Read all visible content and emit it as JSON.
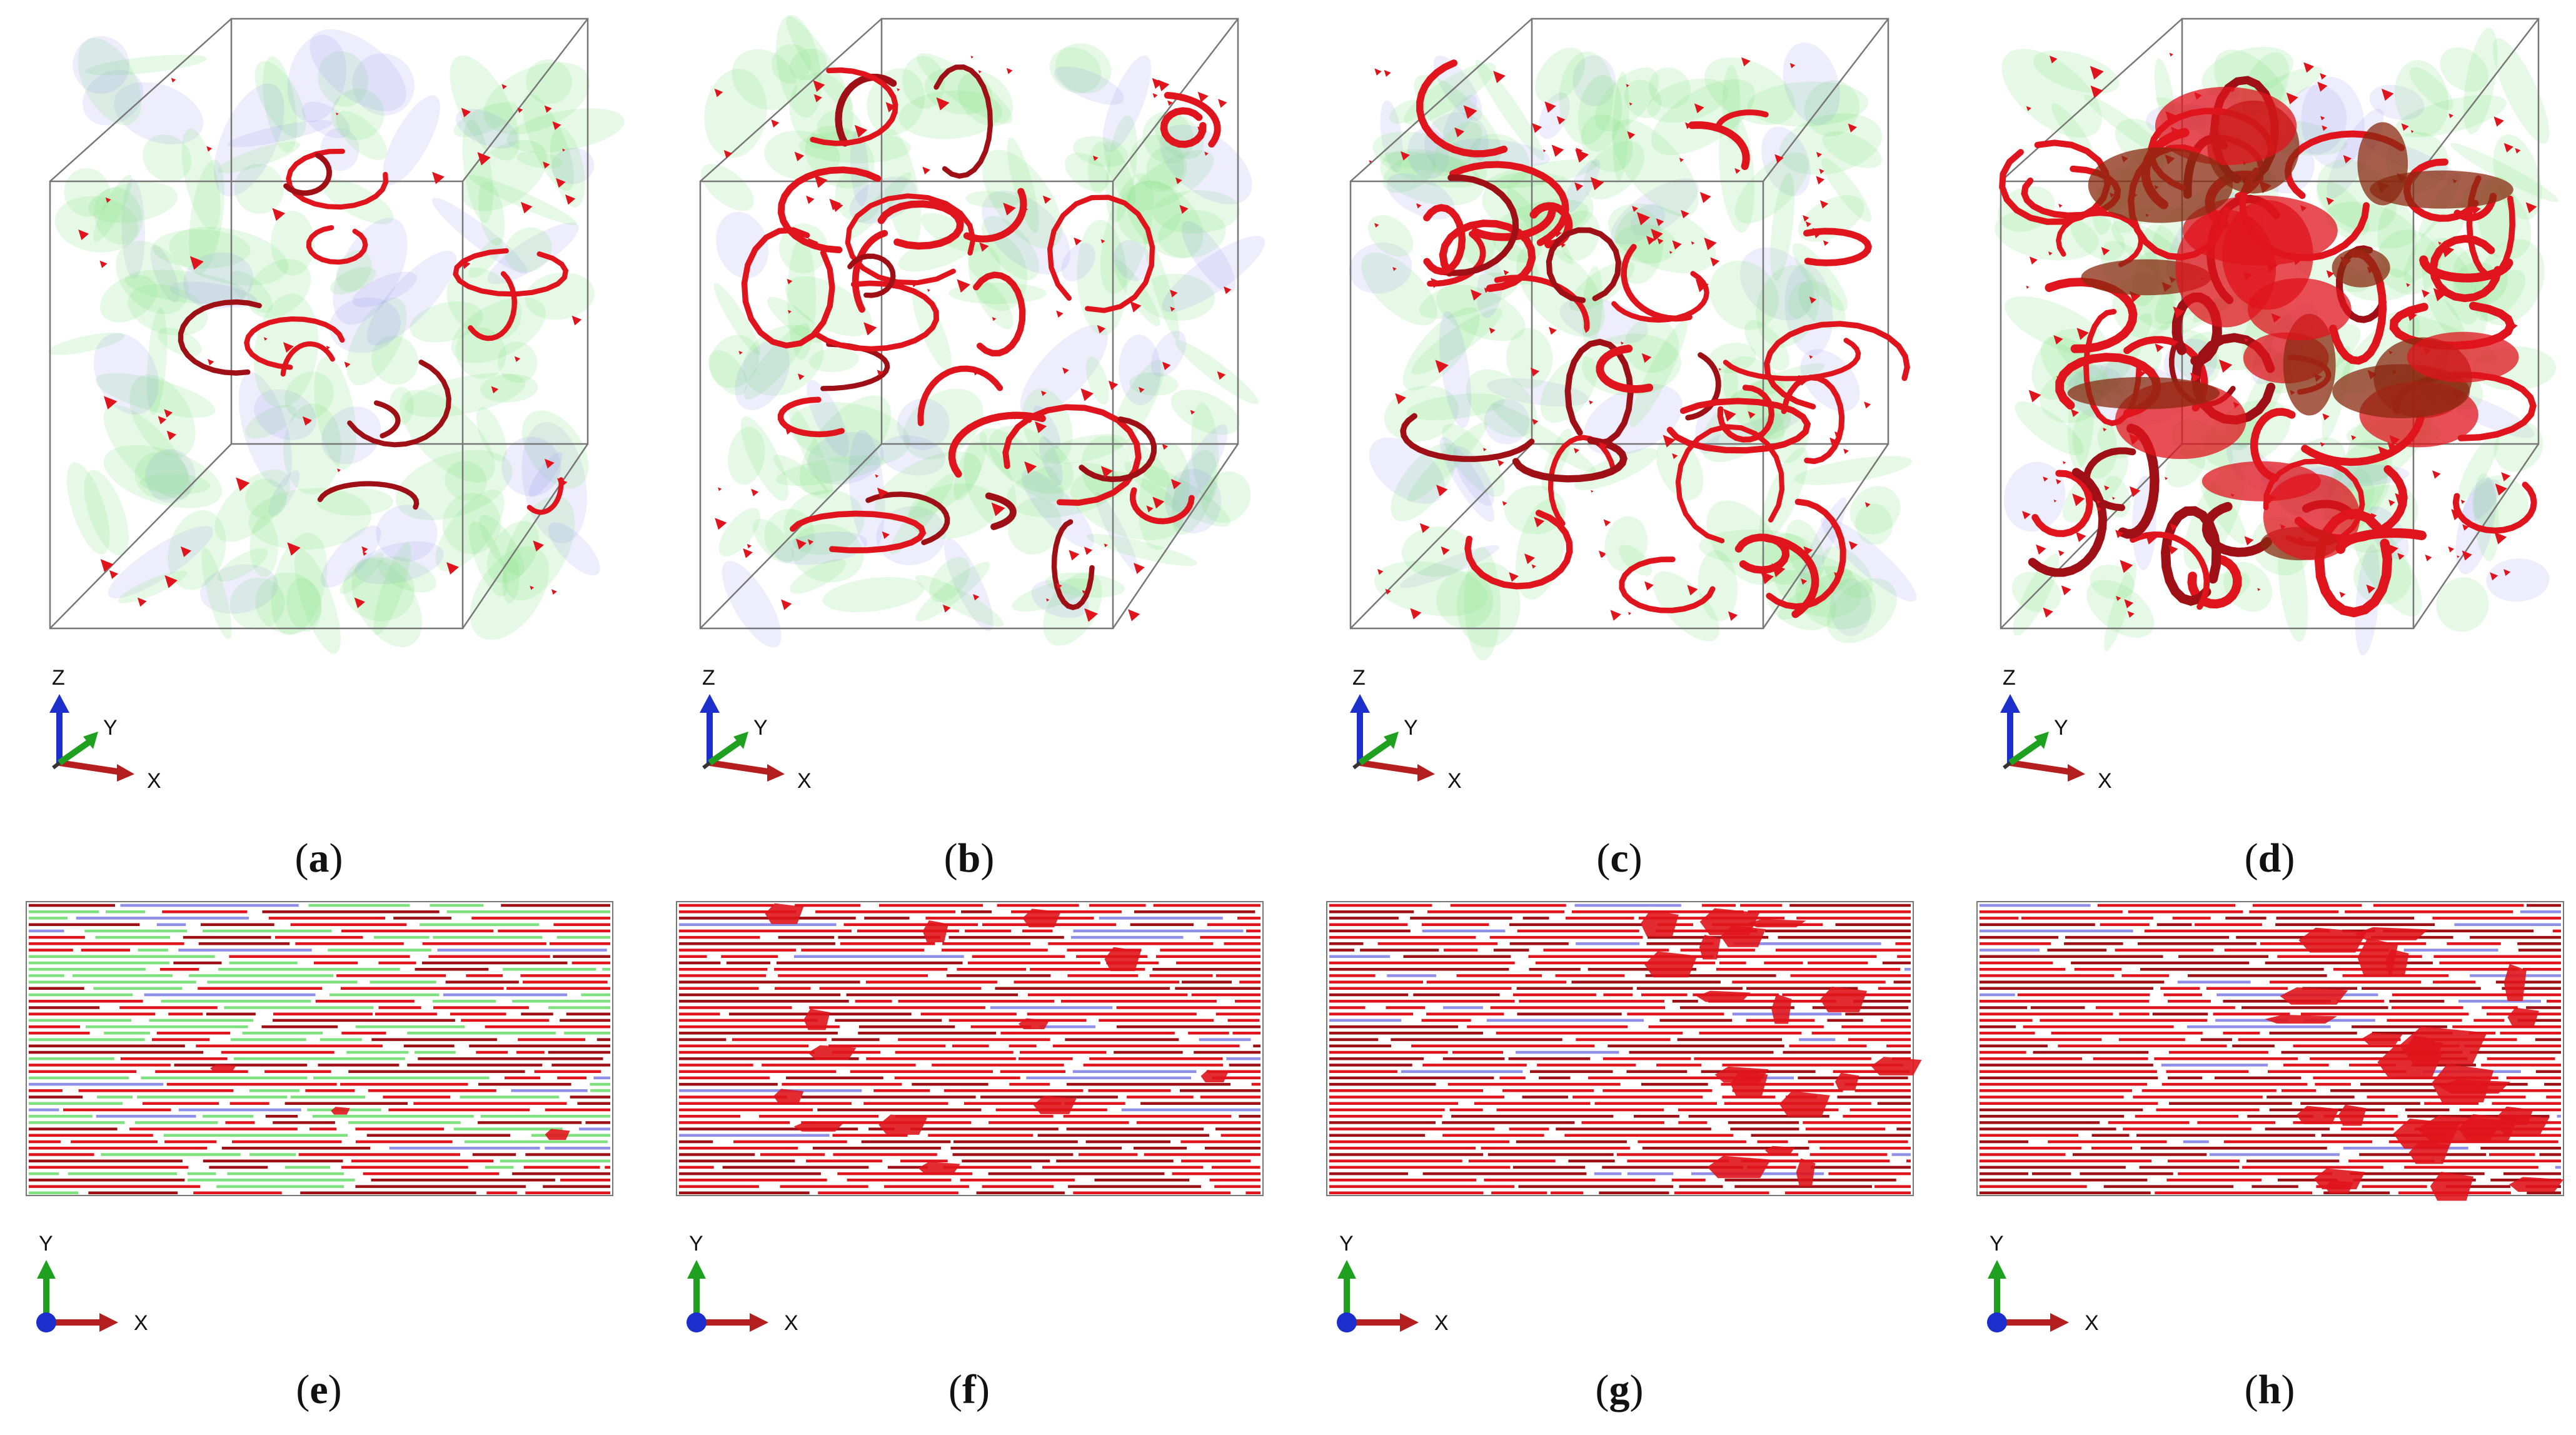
{
  "colors": {
    "crack": "#e0141c",
    "crack_dark": "#9e1016",
    "fiber_green": "#7fe07f",
    "fiber_blue": "#8f8fe8",
    "axis_x": "#b51e1e",
    "axis_y": "#1fa01f",
    "axis_z": "#1c2fcc",
    "frame": "#777777"
  },
  "axes": {
    "x": "X",
    "y": "Y",
    "z": "Z"
  },
  "panels": [
    {
      "label": "a",
      "view": "3d",
      "crack_level": 0.1
    },
    {
      "label": "b",
      "view": "3d",
      "crack_level": 0.45
    },
    {
      "label": "c",
      "view": "3d",
      "crack_level": 0.6
    },
    {
      "label": "d",
      "view": "3d",
      "crack_level": 0.95
    },
    {
      "label": "e",
      "view": "2d",
      "crack_level": 0.1
    },
    {
      "label": "f",
      "view": "2d",
      "crack_level": 0.45
    },
    {
      "label": "g",
      "view": "2d",
      "crack_level": 0.6
    },
    {
      "label": "h",
      "view": "2d",
      "crack_level": 0.95
    }
  ]
}
